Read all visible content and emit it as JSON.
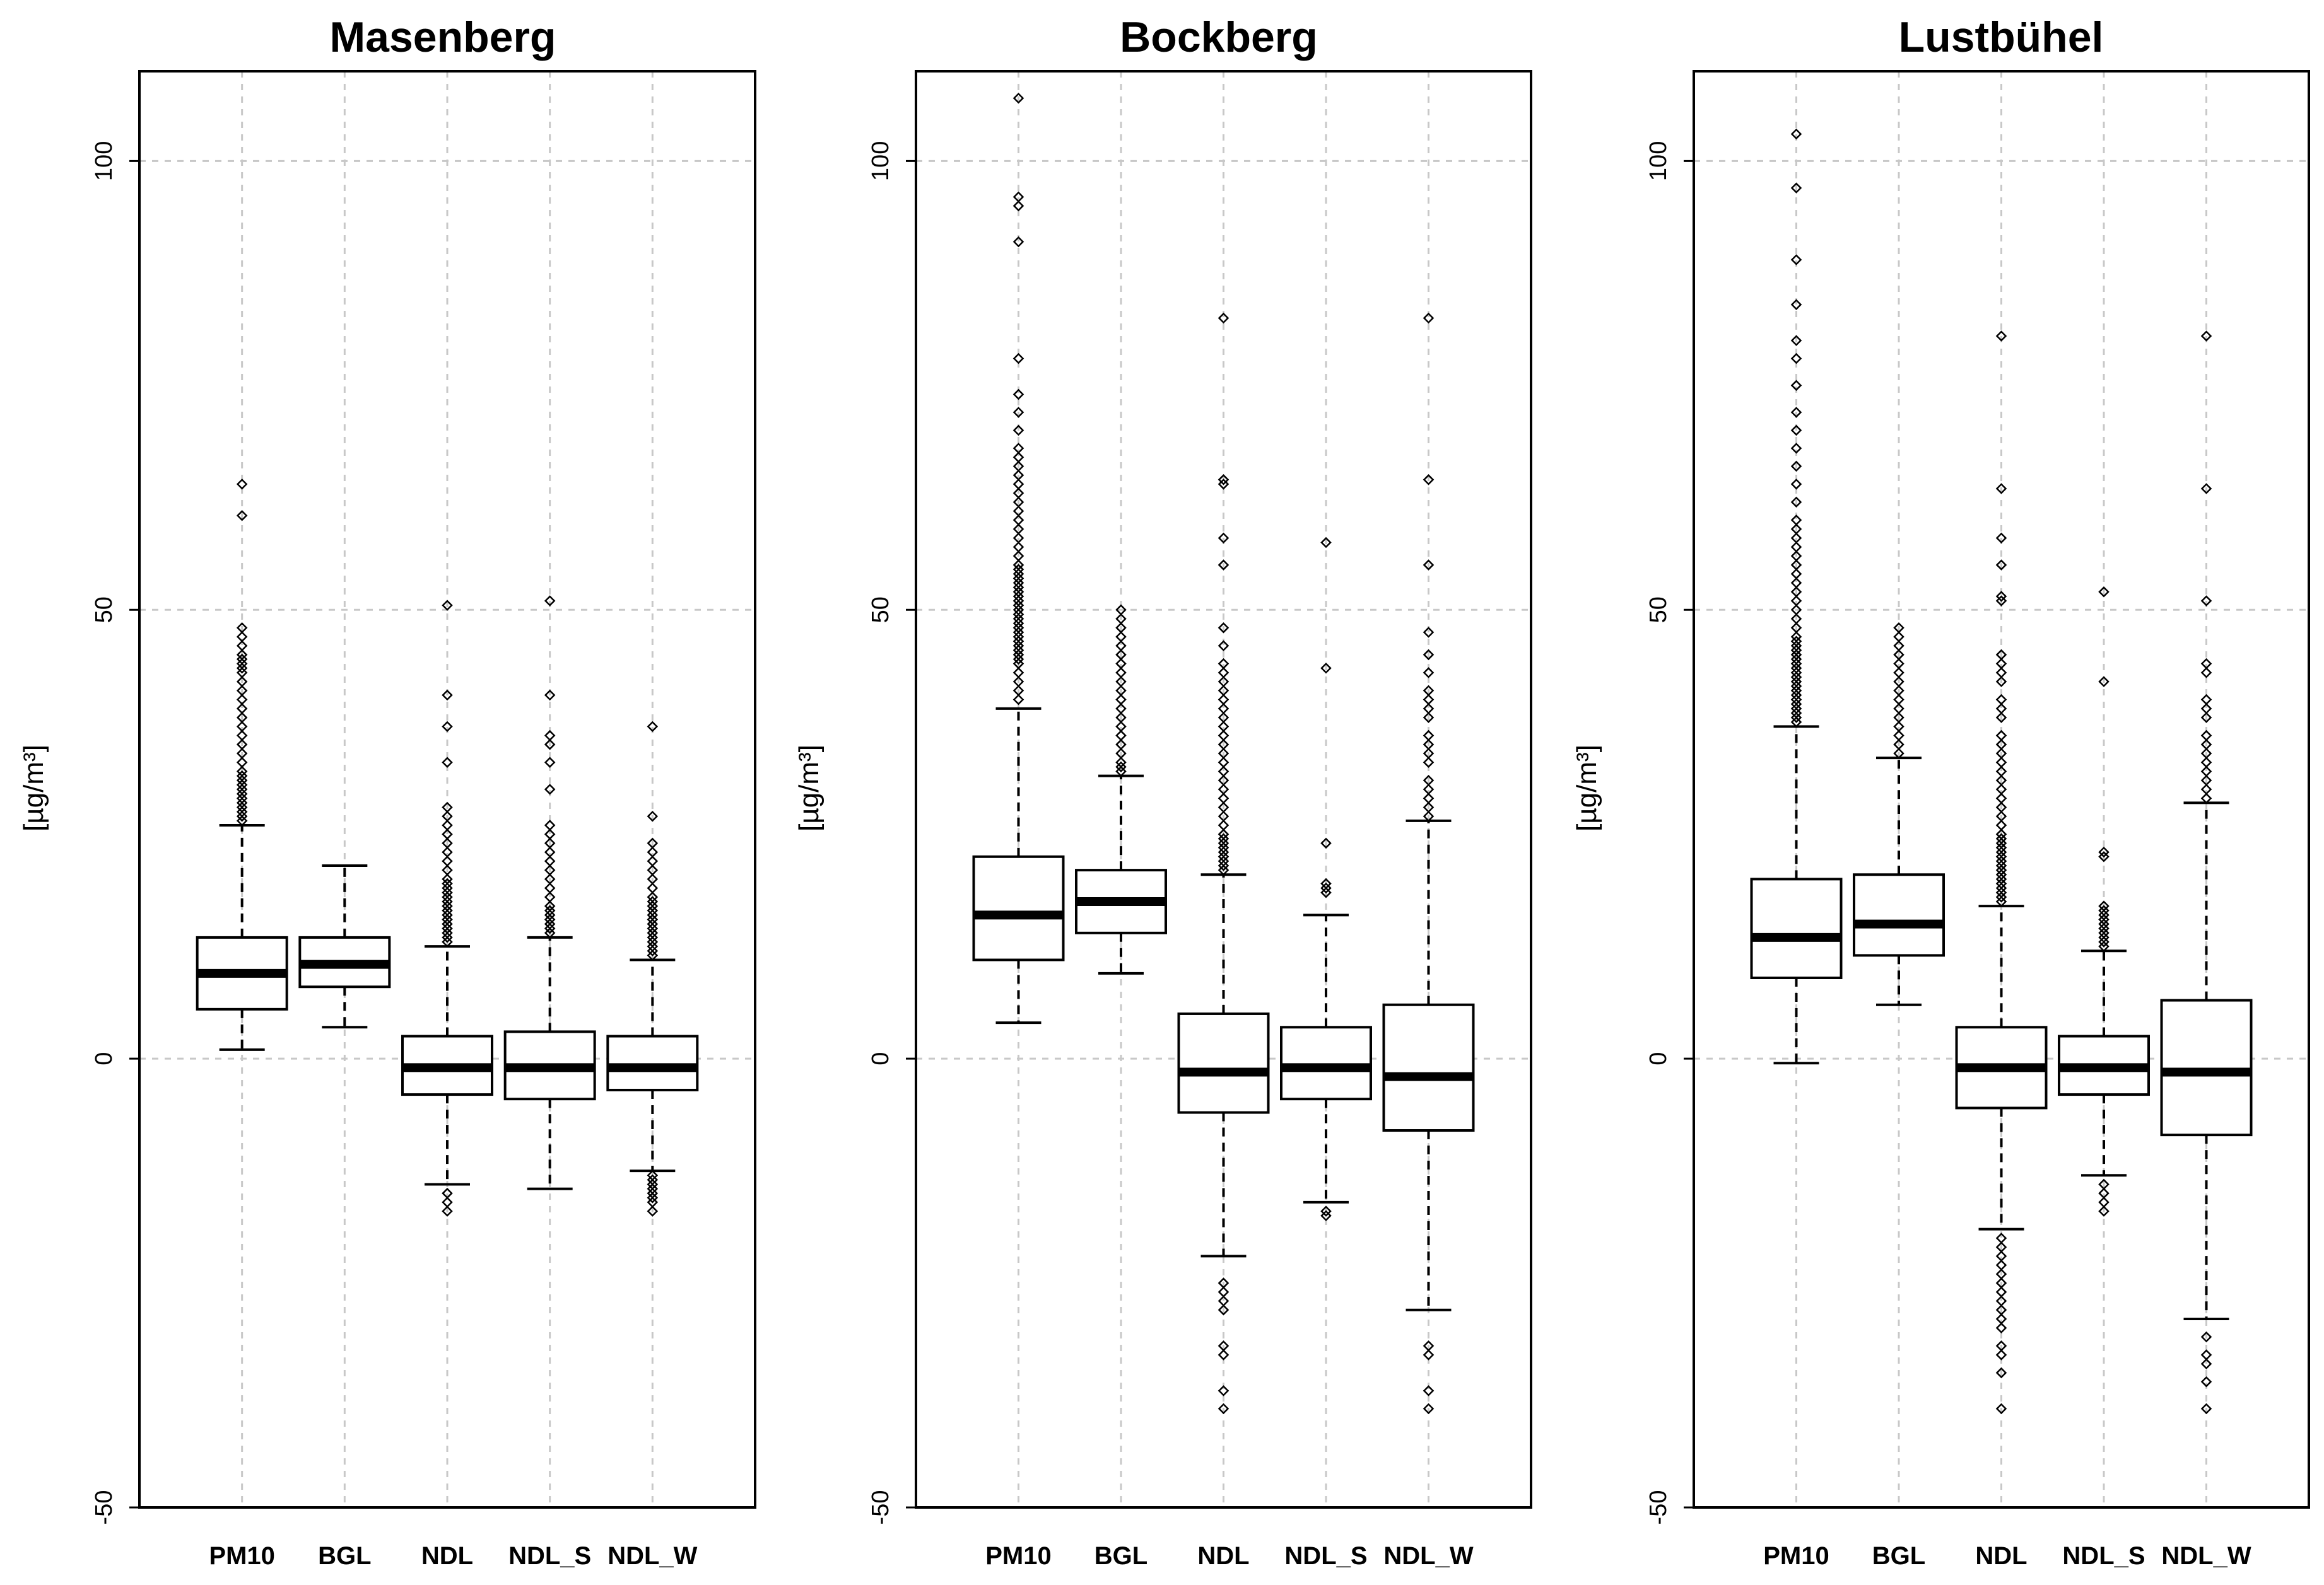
{
  "chart_data": [
    {
      "type": "boxplot",
      "title": "Masenberg",
      "ylabel": "[µg/m³]",
      "ylim": [
        -50,
        110
      ],
      "yticks": [
        -50,
        0,
        50,
        100
      ],
      "categories": [
        "PM10",
        "BGL",
        "NDL",
        "NDL_S",
        "NDL_W"
      ],
      "boxes": [
        {
          "whislo": 1,
          "q1": 5.5,
          "med": 9.5,
          "q3": 13.5,
          "whishi": 26,
          "fliers": [
            26.5,
            27,
            27.5,
            28,
            28.5,
            29,
            29.5,
            30,
            30.5,
            31,
            31.5,
            32,
            33,
            34,
            35,
            36,
            37,
            38,
            39,
            40,
            41,
            42,
            43,
            43.5,
            44,
            44.5,
            45,
            46,
            47,
            48,
            60.5,
            64
          ]
        },
        {
          "whislo": 3.5,
          "q1": 8,
          "med": 10.5,
          "q3": 13.5,
          "whishi": 21.5,
          "fliers": []
        },
        {
          "whislo": -14,
          "q1": -4,
          "med": -1,
          "q3": 2.5,
          "whishi": 12.5,
          "fliers": [
            -15,
            -16,
            -17,
            13,
            13.5,
            14,
            14.5,
            15,
            15.5,
            16,
            16.5,
            17,
            17.5,
            18,
            18.5,
            19,
            19.5,
            20,
            21,
            22,
            23,
            24,
            25,
            26,
            27,
            28,
            33,
            37,
            40.5,
            50.5
          ]
        },
        {
          "whislo": -14.5,
          "q1": -4.5,
          "med": -1,
          "q3": 3,
          "whishi": 13.5,
          "fliers": [
            14,
            14.5,
            15,
            15.5,
            16,
            16.5,
            17,
            18,
            19,
            20,
            21,
            22,
            23,
            24,
            25,
            26,
            30,
            33,
            35,
            36,
            40.5,
            51
          ]
        },
        {
          "whislo": -12.5,
          "q1": -3.5,
          "med": -1,
          "q3": 2.5,
          "whishi": 11,
          "fliers": [
            -13,
            -13.5,
            -14,
            -14.5,
            -15,
            -15.5,
            -16,
            -17,
            11.5,
            12,
            12.5,
            13,
            13.5,
            14,
            14.5,
            15,
            15.5,
            16,
            16.5,
            17,
            17.5,
            18,
            19,
            20,
            21,
            22,
            23,
            24,
            27,
            37
          ]
        }
      ]
    },
    {
      "type": "boxplot",
      "title": "Bockberg",
      "ylabel": "[µg/m³]",
      "ylim": [
        -50,
        110
      ],
      "yticks": [
        -50,
        0,
        50,
        100
      ],
      "categories": [
        "PM10",
        "BGL",
        "NDL",
        "NDL_S",
        "NDL_W"
      ],
      "boxes": [
        {
          "whislo": 4,
          "q1": 11,
          "med": 16,
          "q3": 22.5,
          "whishi": 39,
          "fliers": [
            40,
            41,
            42,
            43,
            44,
            44.5,
            45,
            45.5,
            46,
            46.5,
            47,
            47.5,
            48,
            48.5,
            49,
            49.5,
            50,
            50.5,
            51,
            51.5,
            52,
            52.5,
            53,
            53.5,
            54,
            54.5,
            55,
            56,
            57,
            58,
            59,
            60,
            61,
            62,
            63,
            64,
            65,
            66,
            67,
            68,
            70,
            72,
            74,
            78,
            91,
            95,
            96,
            107
          ]
        },
        {
          "whislo": 9.5,
          "q1": 14,
          "med": 17.5,
          "q3": 21,
          "whishi": 31.5,
          "fliers": [
            32,
            32.5,
            33,
            34,
            35,
            36,
            37,
            38,
            39,
            40,
            41,
            42,
            43,
            44,
            45,
            46,
            47,
            48,
            49,
            50
          ]
        },
        {
          "whislo": -22,
          "q1": -6,
          "med": -1.5,
          "q3": 5,
          "whishi": 20.5,
          "fliers": [
            -25,
            -26,
            -27,
            -28,
            -32,
            -33,
            -37,
            -39,
            21,
            21.5,
            22,
            22.5,
            23,
            23.5,
            24,
            24.5,
            25,
            26,
            27,
            28,
            29,
            30,
            31,
            32,
            33,
            34,
            35,
            36,
            37,
            38,
            39,
            40,
            41,
            42,
            43,
            44,
            46,
            48,
            55,
            58,
            64,
            64.5,
            82.5
          ]
        },
        {
          "whislo": -16,
          "q1": -4.5,
          "med": -1,
          "q3": 3.5,
          "whishi": 16,
          "fliers": [
            -17,
            -17.5,
            18.5,
            19,
            19.5,
            24,
            43.5,
            57.5
          ]
        },
        {
          "whislo": -28,
          "q1": -8,
          "med": -2,
          "q3": 6,
          "whishi": 26.5,
          "fliers": [
            -32,
            -33,
            -37,
            -39,
            27,
            28,
            29,
            30,
            31,
            33,
            34,
            35,
            36,
            38,
            39,
            40,
            41,
            43,
            45,
            47.5,
            55,
            64.5,
            82.5
          ]
        }
      ]
    },
    {
      "type": "boxplot",
      "title": "Lustbühel",
      "ylabel": "[µg/m³]",
      "ylim": [
        -50,
        110
      ],
      "yticks": [
        -50,
        0,
        50,
        100
      ],
      "categories": [
        "PM10",
        "BGL",
        "NDL",
        "NDL_S",
        "NDL_W"
      ],
      "boxes": [
        {
          "whislo": -0.5,
          "q1": 9,
          "med": 13.5,
          "q3": 20,
          "whishi": 37,
          "fliers": [
            37.5,
            38,
            38.5,
            39,
            39.5,
            40,
            40.5,
            41,
            41.5,
            42,
            42.5,
            43,
            43.5,
            44,
            44.5,
            45,
            45.5,
            46,
            46.5,
            47,
            48,
            49,
            50,
            51,
            52,
            53,
            54,
            55,
            56,
            57,
            58,
            59,
            60,
            62,
            64,
            66,
            68,
            70,
            72,
            75,
            78,
            80,
            84,
            89,
            97,
            103
          ]
        },
        {
          "whislo": 6,
          "q1": 11.5,
          "med": 15,
          "q3": 20.5,
          "whishi": 33.5,
          "fliers": [
            34,
            35,
            36,
            37,
            38,
            39,
            40,
            41,
            42,
            43,
            44,
            45,
            46,
            47,
            48
          ]
        },
        {
          "whislo": -19,
          "q1": -5.5,
          "med": -1,
          "q3": 3.5,
          "whishi": 17,
          "fliers": [
            -20,
            -21,
            -22,
            -23,
            -24,
            -25,
            -26,
            -27,
            -28,
            -29,
            -30,
            -32,
            -33,
            -35,
            -39,
            17.5,
            18,
            18.5,
            19,
            19.5,
            20,
            20.5,
            21,
            21.5,
            22,
            22.5,
            23,
            23.5,
            24,
            24.5,
            25,
            26,
            27,
            28,
            29,
            30,
            31,
            32,
            33,
            34,
            35,
            36,
            38,
            39,
            40,
            42,
            43,
            44,
            45,
            51,
            51.5,
            55,
            58,
            63.5,
            80.5
          ]
        },
        {
          "whislo": -13,
          "q1": -4,
          "med": -1,
          "q3": 2.5,
          "whishi": 12,
          "fliers": [
            -14,
            -15,
            -16,
            -17,
            12.5,
            13,
            13.5,
            14,
            14.5,
            15,
            15.5,
            16,
            16.5,
            17,
            22.5,
            23,
            42,
            52
          ]
        },
        {
          "whislo": -29,
          "q1": -8.5,
          "med": -1.5,
          "q3": 6.5,
          "whishi": 28.5,
          "fliers": [
            -31,
            -33,
            -34,
            -36,
            -39,
            29,
            30,
            31,
            32,
            33,
            34,
            35,
            36,
            38,
            39,
            40,
            43,
            44,
            51,
            63.5,
            80.5
          ]
        }
      ]
    }
  ]
}
